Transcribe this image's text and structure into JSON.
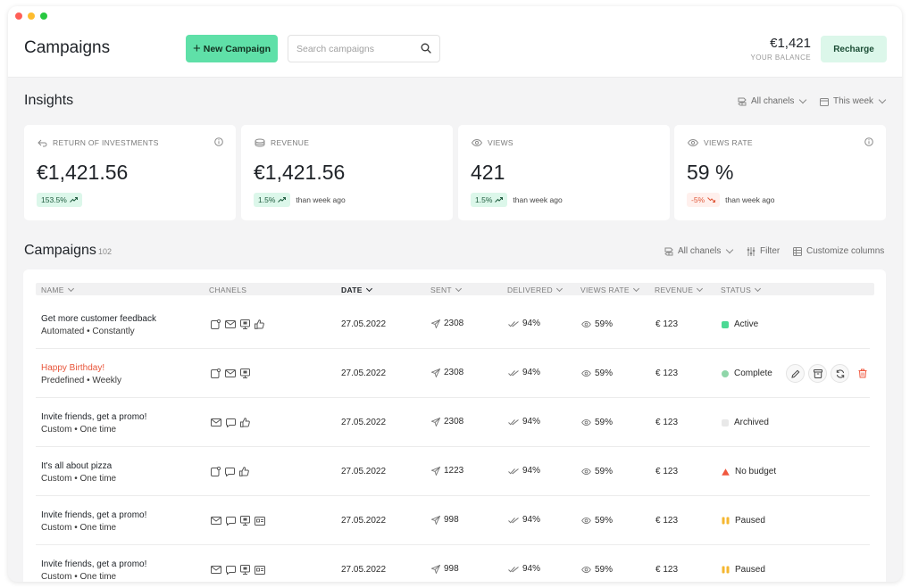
{
  "window_controls": {
    "close_color": "#ff5f57",
    "minimize_color": "#febc2e",
    "maximize_color": "#28c840"
  },
  "header": {
    "title": "Campaigns",
    "new_campaign_label": "New Campaign",
    "search_placeholder": "Search campaigns",
    "balance_amount": "€1,421",
    "balance_label": "YOUR BALANCE",
    "recharge_label": "Recharge"
  },
  "insights": {
    "title": "Insights",
    "channel_filter": "All chanels",
    "period_filter": "This week",
    "cards": [
      {
        "label": "RETURN OF INVESTMENTS",
        "value": "€1,421.56",
        "change": "153.5%",
        "trend": "up",
        "note": ""
      },
      {
        "label": "REVENUE",
        "value": "€1,421.56",
        "change": "1.5%",
        "trend": "up",
        "note": "than week ago"
      },
      {
        "label": "VIEWS",
        "value": "421",
        "change": "1.5%",
        "trend": "up",
        "note": "than week ago"
      },
      {
        "label": "VIEWS RATE",
        "value": "59 %",
        "change": "-5%",
        "trend": "down",
        "note": "than week ago"
      }
    ]
  },
  "campaigns": {
    "title": "Campaigns",
    "count": "102",
    "channel_filter": "All chanels",
    "filter_label": "Filter",
    "customize_label": "Customize columns",
    "columns": [
      "NAME",
      "CHANELS",
      "DATE",
      "SENT",
      "DELIVERED",
      "VIEWS RATE",
      "REVENUE",
      "STATUS"
    ],
    "rows": [
      {
        "name": "Get more customer feedback",
        "sub": "Automated • Constantly",
        "channels": [
          "push-notification-icon",
          "email-icon",
          "display-icon",
          "like-icon"
        ],
        "date": "27.05.2022",
        "sent": "2308",
        "delivered": "94%",
        "views_rate": "59%",
        "revenue": "€ 123",
        "status": "Active",
        "status_color": "#4cd994"
      },
      {
        "name": "Happy Birthday!",
        "sub": "Predefined • Weekly",
        "channels": [
          "push-notification-icon",
          "email-icon",
          "display-icon"
        ],
        "date": "27.05.2022",
        "sent": "2308",
        "delivered": "94%",
        "views_rate": "59%",
        "revenue": "€ 123",
        "status": "Complete",
        "status_color": "#8fd6a9"
      },
      {
        "name": "Invite friends, get a promo!",
        "sub": "Custom • One time",
        "channels": [
          "email-icon",
          "chat-icon",
          "like-icon"
        ],
        "date": "27.05.2022",
        "sent": "2308",
        "delivered": "94%",
        "views_rate": "59%",
        "revenue": "€ 123",
        "status": "Archived",
        "status_color": "#e8e8e8"
      },
      {
        "name": "It's all about pizza",
        "sub": "Custom • One time",
        "channels": [
          "push-notification-icon",
          "chat-icon",
          "like-icon"
        ],
        "date": "27.05.2022",
        "sent": "1223",
        "delivered": "94%",
        "views_rate": "59%",
        "revenue": "€ 123",
        "status": "No budget",
        "status_color": "#f0573e"
      },
      {
        "name": "Invite friends, get a promo!",
        "sub": "Custom • One time",
        "channels": [
          "email-icon",
          "chat-icon",
          "display-icon",
          "wallet-icon"
        ],
        "date": "27.05.2022",
        "sent": "998",
        "delivered": "94%",
        "views_rate": "59%",
        "revenue": "€ 123",
        "status": "Paused",
        "status_color": "#f5b731"
      },
      {
        "name": "Invite friends, get a promo!",
        "sub": "Custom • One time",
        "channels": [
          "email-icon",
          "chat-icon",
          "display-icon",
          "wallet-icon"
        ],
        "date": "27.05.2022",
        "sent": "998",
        "delivered": "94%",
        "views_rate": "59%",
        "revenue": "€ 123",
        "status": "Paused",
        "status_color": "#f5b731"
      }
    ]
  }
}
